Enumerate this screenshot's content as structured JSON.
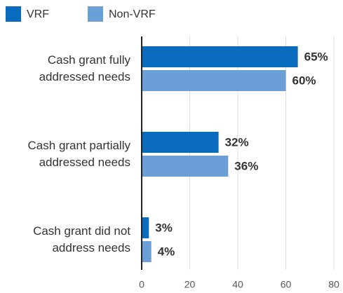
{
  "chart_data": {
    "type": "bar",
    "orientation": "horizontal",
    "categories": [
      "Cash grant fully addressed needs",
      "Cash grant partially addressed needs",
      "Cash grant did not address needs"
    ],
    "series": [
      {
        "name": "VRF",
        "color": "#0a6cbf",
        "values": [
          65,
          32,
          3
        ],
        "value_labels": [
          "65%",
          "32%",
          "3%"
        ]
      },
      {
        "name": "Non-VRF",
        "color": "#6a9fd8",
        "values": [
          60,
          36,
          4
        ],
        "value_labels": [
          "60%",
          "36%",
          "4%"
        ]
      }
    ],
    "xlim": [
      0,
      80
    ],
    "xticks": [
      0,
      20,
      40,
      60,
      80
    ],
    "grid": true,
    "legend": "top-left"
  }
}
